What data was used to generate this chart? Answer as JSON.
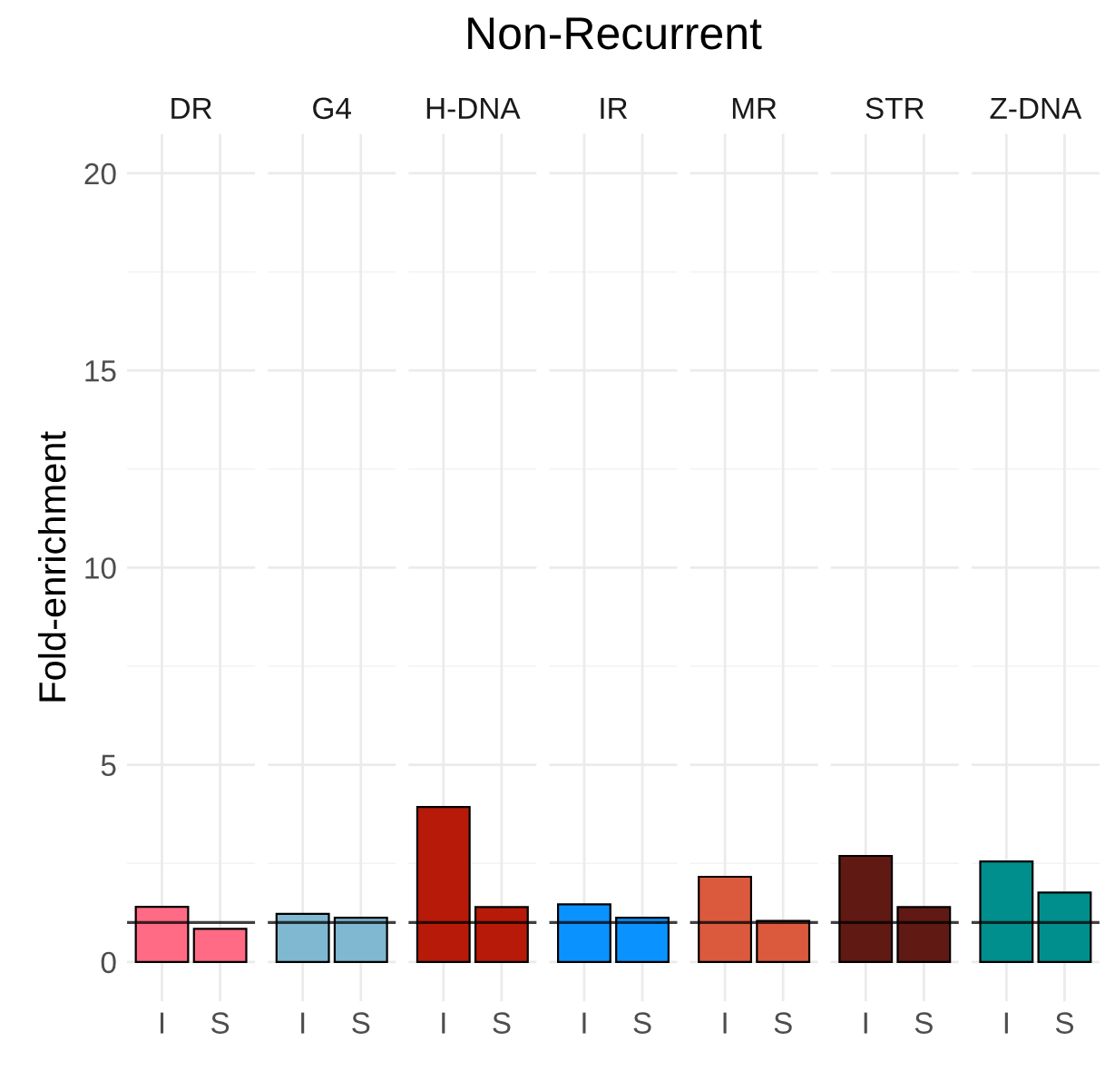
{
  "chart_data": [
    {
      "type": "bar",
      "subtitle": "DR",
      "ylabel": "Fold-enrichment",
      "categories": [
        "I",
        "S"
      ],
      "values": [
        1.4,
        0.84
      ],
      "color": "#ff6b84",
      "ylim": [
        -1,
        21
      ],
      "yticks": [
        0,
        5,
        10,
        15,
        20
      ],
      "grid": true,
      "ref_lines": [
        {
          "axis": "y",
          "value": 1,
          "color": "#000000"
        }
      ]
    },
    {
      "type": "bar",
      "subtitle": "G4",
      "categories": [
        "I",
        "S"
      ],
      "values": [
        1.22,
        1.12
      ],
      "color": "#7fb8d0",
      "ylim": [
        -1,
        21
      ],
      "yticks": [
        0,
        5,
        10,
        15,
        20
      ],
      "grid": true,
      "tick_labels": "x",
      "ref_lines": [
        {
          "axis": "y",
          "value": 1,
          "color": "#000000"
        }
      ]
    },
    {
      "type": "bar",
      "subtitle": "H-DNA",
      "categories": [
        "I",
        "S"
      ],
      "values": [
        3.93,
        1.39
      ],
      "color": "#b71a08",
      "ylim": [
        -1,
        21
      ],
      "yticks": [
        0,
        5,
        10,
        15,
        20
      ],
      "grid": true,
      "tick_labels": "x",
      "ref_lines": [
        {
          "axis": "y",
          "value": 1,
          "color": "#000000"
        }
      ]
    },
    {
      "type": "bar",
      "title": "Non-Recurrent",
      "subtitle": "IR",
      "categories": [
        "I",
        "S"
      ],
      "values": [
        1.46,
        1.12
      ],
      "color": "#0a93ff",
      "ylim": [
        -1,
        21
      ],
      "yticks": [
        0,
        5,
        10,
        15,
        20
      ],
      "grid": true,
      "tick_labels": "x",
      "ref_lines": [
        {
          "axis": "y",
          "value": 1,
          "color": "#000000"
        }
      ]
    },
    {
      "type": "bar",
      "subtitle": "MR",
      "categories": [
        "I",
        "S"
      ],
      "values": [
        2.16,
        1.04
      ],
      "color": "#db5a3e",
      "ylim": [
        -1,
        21
      ],
      "yticks": [
        0,
        5,
        10,
        15,
        20
      ],
      "grid": true,
      "tick_labels": "x",
      "ref_lines": [
        {
          "axis": "y",
          "value": 1,
          "color": "#000000"
        }
      ]
    },
    {
      "type": "bar",
      "subtitle": "STR",
      "categories": [
        "I",
        "S"
      ],
      "values": [
        2.69,
        1.39
      ],
      "color": "#601913",
      "ylim": [
        -1,
        21
      ],
      "yticks": [
        0,
        5,
        10,
        15,
        20
      ],
      "grid": true,
      "tick_labels": "x",
      "ref_lines": [
        {
          "axis": "y",
          "value": 1,
          "color": "#000000"
        }
      ]
    },
    {
      "type": "bar",
      "subtitle": "Z-DNA",
      "categories": [
        "I",
        "S"
      ],
      "values": [
        2.55,
        1.76
      ],
      "color": "#008f8c",
      "ylim": [
        -1,
        21
      ],
      "yticks": [
        0,
        5,
        10,
        15,
        20
      ],
      "grid": true,
      "tick_labels": "x",
      "ref_lines": [
        {
          "axis": "y",
          "value": 1,
          "color": "#000000"
        }
      ]
    }
  ]
}
